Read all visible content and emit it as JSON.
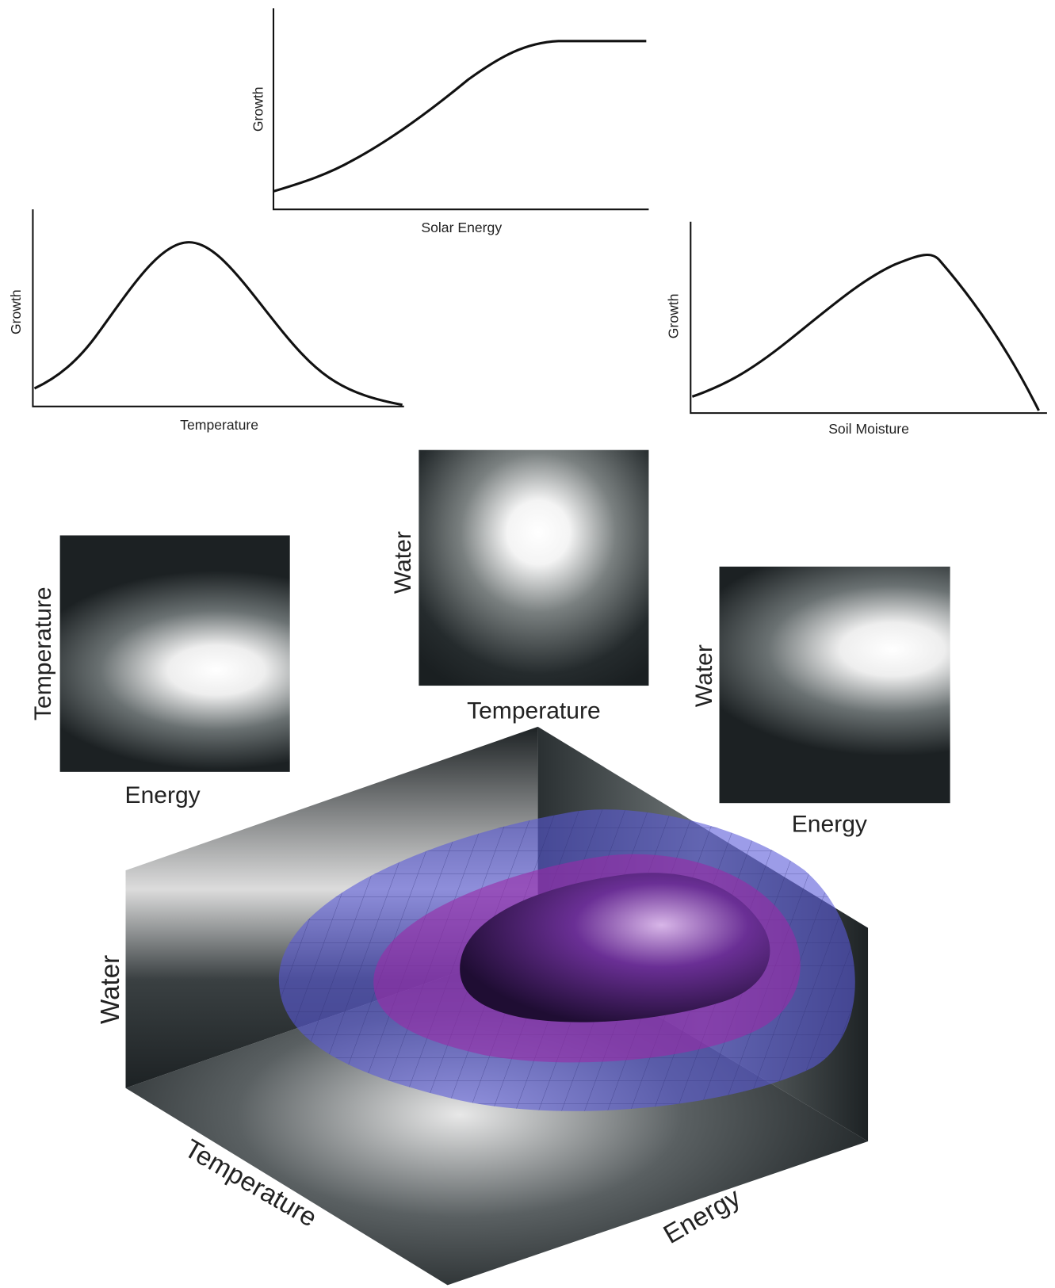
{
  "response_curves": [
    {
      "y_label": "Growth",
      "x_label": "Solar Energy"
    },
    {
      "y_label": "Growth",
      "x_label": "Temperature"
    },
    {
      "y_label": "Growth",
      "x_label": "Soil Moisture"
    }
  ],
  "heatmaps": [
    {
      "y_label": "Temperature",
      "x_label": "Energy"
    },
    {
      "y_label": "Water",
      "x_label": "Temperature"
    },
    {
      "y_label": "Water",
      "x_label": "Energy"
    }
  ],
  "cube": {
    "vertical_label": "Water",
    "left_label": "Temperature",
    "right_label": "Energy"
  }
}
